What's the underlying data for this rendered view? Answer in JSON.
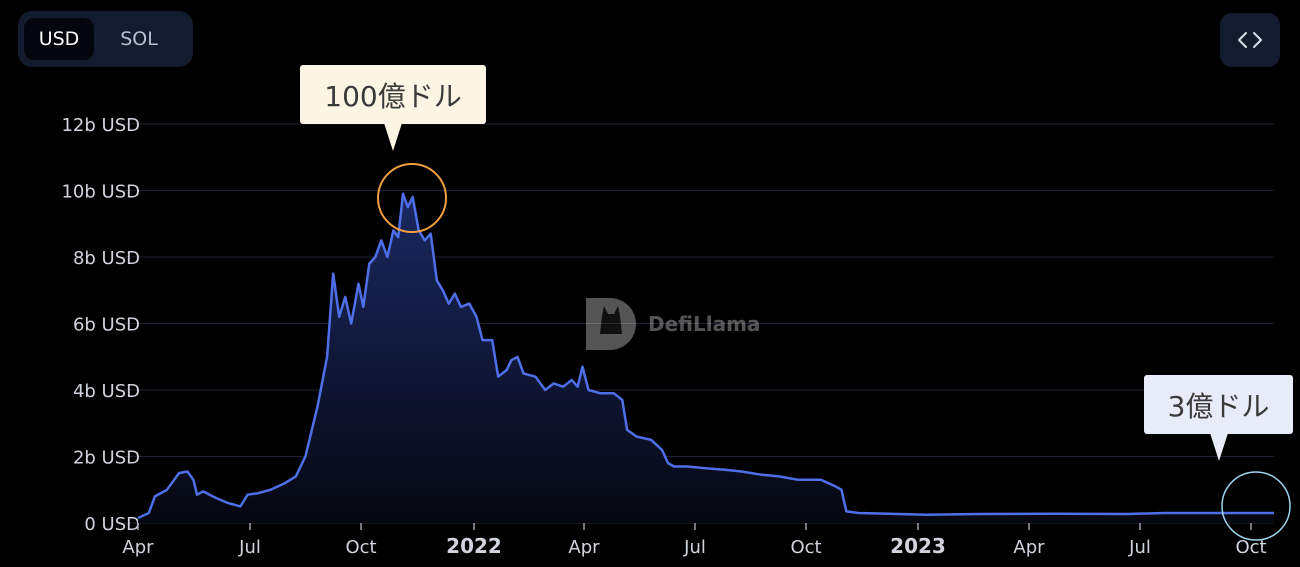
{
  "toggle": {
    "options": [
      "USD",
      "SOL"
    ],
    "selected": "USD"
  },
  "embed_button": {
    "icon": "code-icon",
    "label": "<>"
  },
  "watermark": {
    "icon": "llama-logo-icon",
    "text": "DefiLlama"
  },
  "callouts": {
    "peak": "100億ドル",
    "current": "3億ドル"
  },
  "colors": {
    "line": "#4f6fe8",
    "area_top": "#1c2a66",
    "peak_circle": "#f0a040",
    "current_circle": "#9ed3ee",
    "axis_text": "#d0d4dc"
  },
  "chart_data": {
    "type": "area",
    "unit": "USD",
    "x_range": [
      "2021-04-01",
      "2023-10-31"
    ],
    "ylim": [
      0,
      12000000000
    ],
    "y_ticks": [
      "0 USD",
      "2b USD",
      "4b USD",
      "6b USD",
      "8b USD",
      "10b USD",
      "12b USD"
    ],
    "x_ticks": [
      "Apr",
      "Jul",
      "Oct",
      "2022",
      "Apr",
      "Jul",
      "Oct",
      "2023",
      "Apr",
      "Jul",
      "Oct"
    ],
    "grid": "horizontal",
    "series": [
      {
        "points": [
          [
            "2021-04-01",
            0.15
          ],
          [
            "2021-04-10",
            0.3
          ],
          [
            "2021-04-15",
            0.8
          ],
          [
            "2021-04-25",
            1.0
          ],
          [
            "2021-05-05",
            1.5
          ],
          [
            "2021-05-12",
            1.55
          ],
          [
            "2021-05-17",
            1.3
          ],
          [
            "2021-05-20",
            0.85
          ],
          [
            "2021-05-25",
            0.95
          ],
          [
            "2021-06-05",
            0.75
          ],
          [
            "2021-06-15",
            0.6
          ],
          [
            "2021-06-25",
            0.5
          ],
          [
            "2021-07-01",
            0.85
          ],
          [
            "2021-07-10",
            0.9
          ],
          [
            "2021-07-20",
            1.0
          ],
          [
            "2021-08-01",
            1.2
          ],
          [
            "2021-08-10",
            1.4
          ],
          [
            "2021-08-18",
            2.0
          ],
          [
            "2021-08-28",
            3.5
          ],
          [
            "2021-09-05",
            5.0
          ],
          [
            "2021-09-10",
            7.5
          ],
          [
            "2021-09-15",
            6.2
          ],
          [
            "2021-09-20",
            6.8
          ],
          [
            "2021-09-25",
            6.0
          ],
          [
            "2021-10-01",
            7.2
          ],
          [
            "2021-10-05",
            6.5
          ],
          [
            "2021-10-10",
            7.8
          ],
          [
            "2021-10-15",
            8.0
          ],
          [
            "2021-10-20",
            8.5
          ],
          [
            "2021-10-25",
            8.0
          ],
          [
            "2021-10-30",
            8.8
          ],
          [
            "2021-11-03",
            8.6
          ],
          [
            "2021-11-07",
            9.9
          ],
          [
            "2021-11-11",
            9.5
          ],
          [
            "2021-11-15",
            9.8
          ],
          [
            "2021-11-20",
            8.8
          ],
          [
            "2021-11-25",
            8.5
          ],
          [
            "2021-11-30",
            8.7
          ],
          [
            "2021-12-05",
            7.3
          ],
          [
            "2021-12-10",
            7.0
          ],
          [
            "2021-12-15",
            6.6
          ],
          [
            "2021-12-20",
            6.9
          ],
          [
            "2021-12-25",
            6.5
          ],
          [
            "2022-01-01",
            6.6
          ],
          [
            "2022-01-07",
            6.2
          ],
          [
            "2022-01-12",
            5.5
          ],
          [
            "2022-01-20",
            5.5
          ],
          [
            "2022-01-25",
            4.4
          ],
          [
            "2022-02-01",
            4.6
          ],
          [
            "2022-02-05",
            4.9
          ],
          [
            "2022-02-10",
            5.0
          ],
          [
            "2022-02-15",
            4.5
          ],
          [
            "2022-02-25",
            4.4
          ],
          [
            "2022-03-05",
            4.0
          ],
          [
            "2022-03-12",
            4.2
          ],
          [
            "2022-03-20",
            4.1
          ],
          [
            "2022-03-27",
            4.3
          ],
          [
            "2022-04-01",
            4.1
          ],
          [
            "2022-04-05",
            4.7
          ],
          [
            "2022-04-10",
            4.0
          ],
          [
            "2022-04-20",
            3.9
          ],
          [
            "2022-05-01",
            3.9
          ],
          [
            "2022-05-08",
            3.7
          ],
          [
            "2022-05-12",
            2.8
          ],
          [
            "2022-05-20",
            2.6
          ],
          [
            "2022-06-01",
            2.5
          ],
          [
            "2022-06-10",
            2.2
          ],
          [
            "2022-06-15",
            1.8
          ],
          [
            "2022-06-20",
            1.7
          ],
          [
            "2022-07-01",
            1.7
          ],
          [
            "2022-07-15",
            1.65
          ],
          [
            "2022-08-01",
            1.6
          ],
          [
            "2022-08-15",
            1.55
          ],
          [
            "2022-09-01",
            1.45
          ],
          [
            "2022-09-15",
            1.4
          ],
          [
            "2022-10-01",
            1.3
          ],
          [
            "2022-10-20",
            1.3
          ],
          [
            "2022-11-01",
            1.1
          ],
          [
            "2022-11-06",
            1.0
          ],
          [
            "2022-11-10",
            0.35
          ],
          [
            "2022-11-20",
            0.3
          ],
          [
            "2022-12-15",
            0.28
          ],
          [
            "2023-01-15",
            0.25
          ],
          [
            "2023-03-01",
            0.27
          ],
          [
            "2023-05-01",
            0.28
          ],
          [
            "2023-07-01",
            0.27
          ],
          [
            "2023-08-01",
            0.3
          ],
          [
            "2023-10-01",
            0.3
          ],
          [
            "2023-10-31",
            0.3
          ]
        ],
        "point_units": "billions USD"
      }
    ]
  }
}
